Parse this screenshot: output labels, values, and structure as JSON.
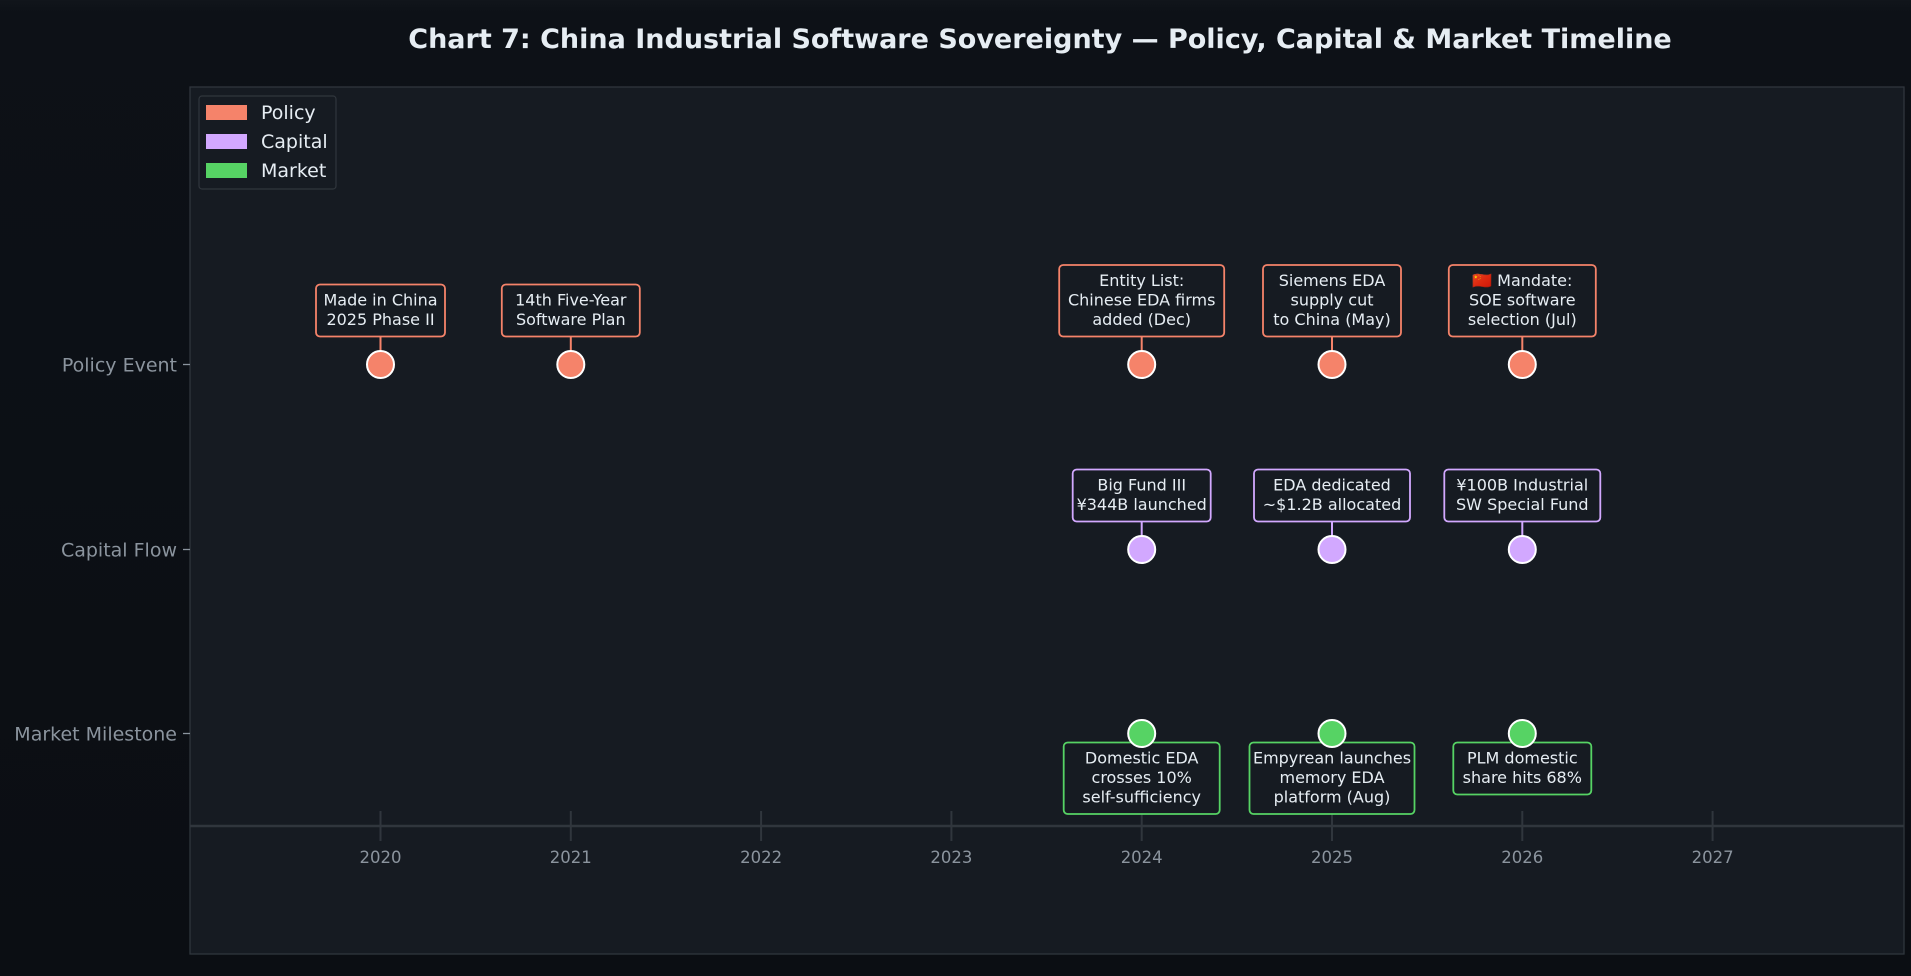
{
  "chart_data": {
    "type": "timeline",
    "title": "Chart 7: China Industrial Software Sovereignty — Policy, Capital & Market Timeline",
    "xlim": [
      2019,
      2028
    ],
    "x_ticks": [
      2020,
      2021,
      2022,
      2023,
      2024,
      2025,
      2026,
      2027
    ],
    "lanes": [
      {
        "key": "policy",
        "label": "Policy Event"
      },
      {
        "key": "capital",
        "label": "Capital Flow"
      },
      {
        "key": "market",
        "label": "Market Milestone"
      }
    ],
    "legend": {
      "placement": "top-left",
      "entries": [
        {
          "category": "policy",
          "label": "Policy",
          "color": "#f5836a"
        },
        {
          "category": "capital",
          "label": "Capital",
          "color": "#d2a8ff"
        },
        {
          "category": "market",
          "label": "Market",
          "color": "#56d364"
        }
      ]
    },
    "events": [
      {
        "lane": "policy",
        "x": 2020,
        "lines": [
          "Made in China",
          "2025 Phase II"
        ]
      },
      {
        "lane": "policy",
        "x": 2021,
        "lines": [
          "14th Five-Year",
          "Software Plan"
        ]
      },
      {
        "lane": "policy",
        "x": 2024,
        "lines": [
          "Entity List:",
          "Chinese EDA firms",
          "added (Dec)"
        ]
      },
      {
        "lane": "policy",
        "x": 2025,
        "lines": [
          "Siemens EDA",
          "supply cut",
          "to China (May)"
        ]
      },
      {
        "lane": "policy",
        "x": 2026,
        "lines": [
          "🇨🇳 Mandate:",
          "SOE software",
          "selection (Jul)"
        ]
      },
      {
        "lane": "capital",
        "x": 2024,
        "lines": [
          "Big Fund III",
          "¥344B launched"
        ]
      },
      {
        "lane": "capital",
        "x": 2025,
        "lines": [
          "EDA dedicated",
          "~$1.2B allocated"
        ]
      },
      {
        "lane": "capital",
        "x": 2026,
        "lines": [
          "¥100B Industrial",
          "SW Special Fund"
        ]
      },
      {
        "lane": "market",
        "x": 2024,
        "lines": [
          "Domestic EDA",
          "crosses 10%",
          "self-sufficiency"
        ]
      },
      {
        "lane": "market",
        "x": 2025,
        "lines": [
          "Empyrean launches",
          "memory EDA",
          "platform (Aug)"
        ]
      },
      {
        "lane": "market",
        "x": 2026,
        "lines": [
          "PLM domestic",
          "share hits 68%"
        ]
      }
    ]
  }
}
